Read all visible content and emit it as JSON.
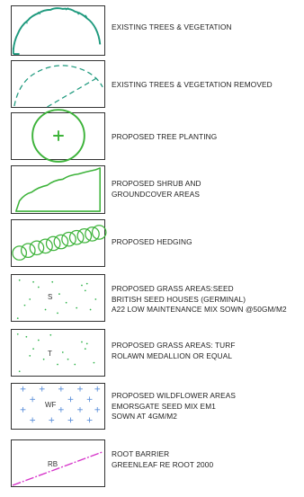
{
  "colors": {
    "teal": "#1f9a7e",
    "green": "#3db33a",
    "dot_green": "#2fb34a",
    "blue_cross": "#5b8fd9",
    "magenta": "#d633c9",
    "border": "#333333"
  },
  "legend": [
    {
      "id": "existing-trees",
      "lines": [
        "EXISTING TREES & VEGETATION"
      ]
    },
    {
      "id": "trees-removed",
      "lines": [
        "EXISTING TREES & VEGETATION REMOVED"
      ]
    },
    {
      "id": "tree-planting",
      "lines": [
        "PROPOSED TREE PLANTING"
      ]
    },
    {
      "id": "shrub",
      "lines": [
        "PROPOSED SHRUB AND",
        "GROUNDCOVER AREAS"
      ]
    },
    {
      "id": "hedging",
      "lines": [
        "PROPOSED HEDGING"
      ]
    },
    {
      "id": "grass-seed",
      "code": "S",
      "lines": [
        "PROPOSED GRASS AREAS:SEED",
        "BRITISH SEED HOUSES (GERMINAL)",
        "A22 LOW MAINTENANCE MIX SOWN @50gm/m2"
      ]
    },
    {
      "id": "grass-turf",
      "code": "T",
      "lines": [
        "PROPOSED GRASS AREAS: TURF",
        "ROLAWN MEDALLION OR EQUAL"
      ]
    },
    {
      "id": "wildflower",
      "code": "WF",
      "lines": [
        "PROPOSED WILDFLOWER AREAS",
        "EMORSGATE SEED MIX EM1",
        "SOWN AT 4gm/m2"
      ]
    },
    {
      "id": "root-barrier",
      "code": "RB",
      "lines": [
        "ROOT BARRIER",
        "GREENLEAF RE ROOT 2000"
      ]
    }
  ]
}
